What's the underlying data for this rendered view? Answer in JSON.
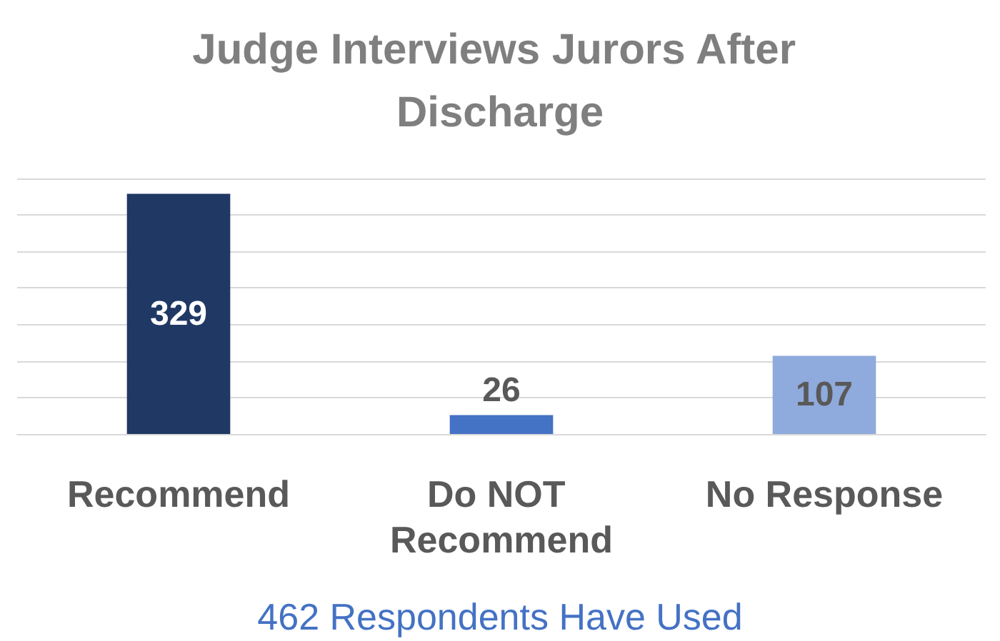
{
  "chart_data": {
    "type": "bar",
    "title": "Judge Interviews Jurors After Discharge",
    "categories": [
      "Recommend",
      "Do NOT Recommend",
      "No Response"
    ],
    "values": [
      329,
      26,
      107
    ],
    "colors": [
      "#203864",
      "#4472c4",
      "#8faadc"
    ],
    "ylim": [
      0,
      350
    ],
    "yticks": [
      0,
      50,
      100,
      150,
      200,
      250,
      300,
      350
    ],
    "grid": "y",
    "tick_labels": "x",
    "data_labels": true,
    "annotations": [
      "462 Respondents Have Used"
    ]
  }
}
